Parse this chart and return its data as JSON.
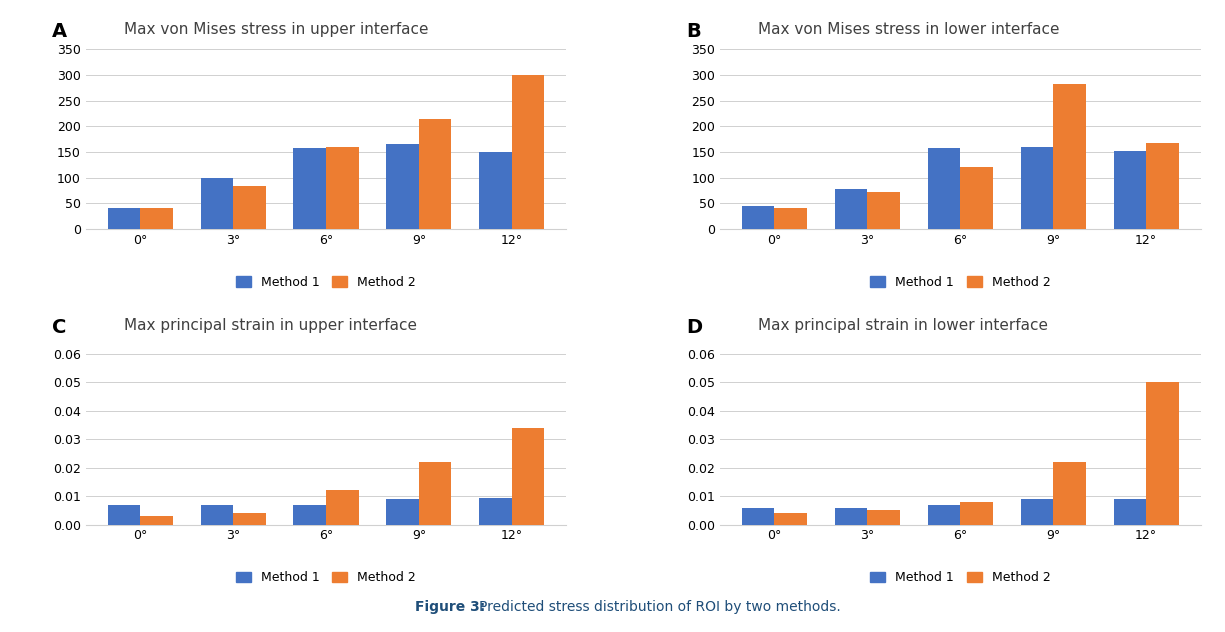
{
  "categories": [
    "0°",
    "3°",
    "6°",
    "9°",
    "12°"
  ],
  "panel_A": {
    "title": "Max von Mises stress in upper interface",
    "label": "A",
    "method1": [
      40,
      100,
      157,
      165,
      150
    ],
    "method2": [
      40,
      83,
      160,
      215,
      300
    ],
    "ylim": [
      0,
      360
    ],
    "yticks": [
      0,
      50,
      100,
      150,
      200,
      250,
      300,
      350
    ]
  },
  "panel_B": {
    "title": "Max von Mises stress in lower interface",
    "label": "B",
    "method1": [
      45,
      78,
      157,
      160,
      152
    ],
    "method2": [
      40,
      73,
      120,
      283,
      167
    ],
    "ylim": [
      0,
      360
    ],
    "yticks": [
      0,
      50,
      100,
      150,
      200,
      250,
      300,
      350
    ]
  },
  "panel_C": {
    "title": "Max principal strain in upper interface",
    "label": "C",
    "method1": [
      0.007,
      0.007,
      0.007,
      0.009,
      0.0095
    ],
    "method2": [
      0.003,
      0.004,
      0.012,
      0.022,
      0.034
    ],
    "ylim": [
      0,
      0.065
    ],
    "yticks": [
      0.0,
      0.01,
      0.02,
      0.03,
      0.04,
      0.05,
      0.06
    ]
  },
  "panel_D": {
    "title": "Max principal strain in lower interface",
    "label": "D",
    "method1": [
      0.006,
      0.006,
      0.007,
      0.009,
      0.009
    ],
    "method2": [
      0.004,
      0.005,
      0.008,
      0.022,
      0.05
    ],
    "ylim": [
      0,
      0.065
    ],
    "yticks": [
      0.0,
      0.01,
      0.02,
      0.03,
      0.04,
      0.05,
      0.06
    ]
  },
  "color_method1": "#4472C4",
  "color_method2": "#ED7D31",
  "background": "#ffffff",
  "legend_labels": [
    "Method 1",
    "Method 2"
  ],
  "caption_prefix": "Figure 3: ",
  "caption_body": "Predicted stress distribution of ROI by two methods.",
  "bar_width": 0.35,
  "caption_color": "#1F4E79"
}
